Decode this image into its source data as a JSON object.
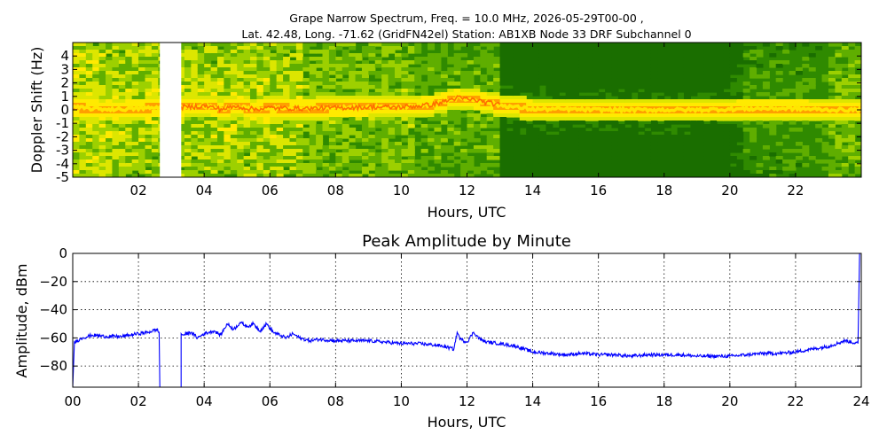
{
  "figure": {
    "title_line1": "Grape Narrow Spectrum, Freq. = 10.0 MHz, 2026-05-29T00-00 ,",
    "title_line2": "Lat.  42.48, Long. -71.62 (GridFN42el) Station: AB1XB Node 33 DRF Subchannel 0"
  },
  "chart_data": [
    {
      "type": "heatmap",
      "title": "",
      "xlabel": "Hours, UTC",
      "ylabel": "Doppler Shift (Hz)",
      "xlim": [
        0,
        24
      ],
      "ylim": [
        -5,
        5
      ],
      "x_ticks": [
        2,
        4,
        6,
        8,
        10,
        12,
        14,
        16,
        18,
        20,
        22
      ],
      "x_tick_labels": [
        "02",
        "04",
        "06",
        "08",
        "10",
        "12",
        "14",
        "16",
        "18",
        "20",
        "22"
      ],
      "y_ticks": [
        -5,
        -4,
        -3,
        -2,
        -1,
        0,
        1,
        2,
        3,
        4
      ],
      "y_tick_labels": [
        "-5",
        "-4",
        "-3",
        "-2",
        "-1",
        "0",
        "1",
        "2",
        "3",
        "4"
      ],
      "colormap": [
        "#1a6e00",
        "#2f8a00",
        "#5fae00",
        "#9dd000",
        "#dde600",
        "#ffea00",
        "#ff9f00",
        "#ff4a00"
      ],
      "missing_data_interval_hours": [
        2.65,
        3.3
      ],
      "carrier_trace": [
        [
          0,
          0.2
        ],
        [
          0.5,
          0.1
        ],
        [
          1,
          0.05
        ],
        [
          1.5,
          0.05
        ],
        [
          2,
          0.1
        ],
        [
          2.5,
          0.15
        ],
        [
          3.5,
          0.2
        ],
        [
          4,
          0.3
        ],
        [
          4.5,
          0.05
        ],
        [
          5,
          0.25
        ],
        [
          5.5,
          0.05
        ],
        [
          6,
          0.15
        ],
        [
          7,
          0.1
        ],
        [
          8,
          0.15
        ],
        [
          9,
          0.2
        ],
        [
          10,
          0.2
        ],
        [
          11,
          0.4
        ],
        [
          11.7,
          0.9
        ],
        [
          12.3,
          0.7
        ],
        [
          13,
          0.35
        ],
        [
          14,
          0.05
        ],
        [
          15,
          0.05
        ],
        [
          16,
          0.0
        ],
        [
          17,
          0.0
        ],
        [
          18,
          0.0
        ],
        [
          19,
          0.0
        ],
        [
          20,
          0.05
        ],
        [
          21,
          0.1
        ],
        [
          22,
          0.1
        ],
        [
          23,
          0.0
        ],
        [
          24,
          0.0
        ]
      ]
    },
    {
      "type": "line",
      "title": "Peak Amplitude by Minute",
      "xlabel": "Hours, UTC",
      "ylabel": "Amplitude, dBm",
      "xlim": [
        0,
        24
      ],
      "ylim": [
        -95,
        0
      ],
      "x_ticks": [
        0,
        2,
        4,
        6,
        8,
        10,
        12,
        14,
        16,
        18,
        20,
        22,
        24
      ],
      "x_tick_labels": [
        "00",
        "02",
        "04",
        "06",
        "08",
        "10",
        "12",
        "14",
        "16",
        "18",
        "20",
        "22",
        "24"
      ],
      "y_ticks": [
        0,
        -20,
        -40,
        -60,
        -80
      ],
      "y_tick_labels": [
        "0",
        "−20",
        "−40",
        "−60",
        "−80"
      ],
      "grid": true,
      "series": [
        {
          "color": "#0000ff",
          "x": [
            0,
            0.05,
            0.3,
            0.6,
            1.0,
            1.5,
            2.0,
            2.3,
            2.55,
            2.63,
            2.65,
            2.65,
            3.3,
            3.3,
            3.35,
            3.6,
            3.8,
            4.0,
            4.3,
            4.5,
            4.7,
            4.9,
            5.1,
            5.3,
            5.5,
            5.7,
            5.9,
            6.1,
            6.3,
            6.5,
            6.7,
            6.9,
            7.2,
            7.5,
            8.0,
            8.5,
            9.0,
            9.5,
            10.0,
            10.5,
            11.0,
            11.3,
            11.6,
            11.7,
            11.8,
            12.0,
            12.2,
            12.4,
            12.6,
            13.0,
            13.5,
            14.0,
            14.5,
            15.0,
            15.5,
            16.0,
            16.5,
            17.0,
            17.5,
            18.0,
            18.5,
            19.0,
            19.5,
            20.0,
            20.5,
            21.0,
            21.5,
            22.0,
            22.5,
            23.0,
            23.5,
            23.9,
            23.95
          ],
          "y": [
            -95,
            -63,
            -60,
            -58,
            -59,
            -59,
            -57,
            -56,
            -54,
            -56,
            -95,
            -95,
            -95,
            -57,
            -58,
            -56,
            -60,
            -57,
            -55,
            -58,
            -50,
            -54,
            -49,
            -52,
            -50,
            -55,
            -50,
            -56,
            -58,
            -60,
            -57,
            -60,
            -62,
            -61,
            -62,
            -62,
            -62,
            -63,
            -64,
            -64,
            -65,
            -66,
            -68,
            -56,
            -61,
            -63,
            -56,
            -61,
            -63,
            -64,
            -66,
            -70,
            -71,
            -72,
            -71,
            -72,
            -72,
            -73,
            -72,
            -72,
            -72,
            -73,
            -73,
            -73,
            -72,
            -71,
            -71,
            -70,
            -68,
            -66,
            -62,
            -64,
            0
          ]
        }
      ]
    }
  ]
}
